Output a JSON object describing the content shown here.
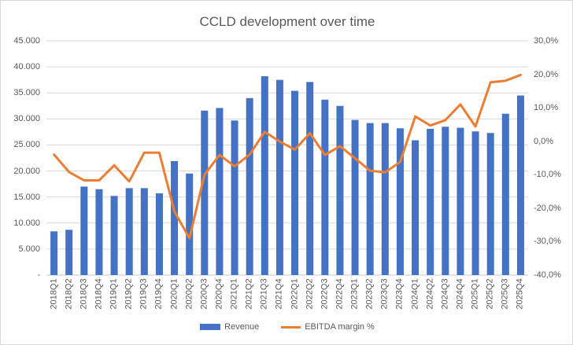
{
  "chart_data": {
    "type": "combo-bar-line",
    "title": "CCLD development over time",
    "categories": [
      "2018Q1",
      "2018Q2",
      "2018Q3",
      "2018Q4",
      "2019Q1",
      "2019Q2",
      "2019Q3",
      "2019Q4",
      "2020Q1",
      "2020Q2",
      "2020Q3",
      "2020Q4",
      "2021Q1",
      "2021Q2",
      "2021Q3",
      "2021Q4",
      "2022Q1",
      "2022Q2",
      "2022Q3",
      "2022Q4",
      "2023Q1",
      "2023Q2",
      "2023Q3",
      "2023Q4",
      "2024Q1",
      "2024Q2",
      "2024Q3",
      "2024Q4",
      "2025Q1",
      "2025Q2",
      "2025Q3",
      "2025Q4"
    ],
    "series": [
      {
        "name": "Revenue",
        "type": "bar",
        "axis": "left",
        "values": [
          8400,
          8700,
          17000,
          16500,
          15200,
          16700,
          16700,
          15700,
          21900,
          19500,
          31600,
          32100,
          29700,
          34000,
          38200,
          37500,
          35400,
          37100,
          33700,
          32500,
          29800,
          29200,
          29200,
          28200,
          25900,
          28100,
          28500,
          28300,
          27600,
          27300,
          31000,
          34500
        ]
      },
      {
        "name": "EBITDA margin %",
        "type": "line",
        "axis": "right",
        "values": [
          -4.0,
          -9.2,
          -11.7,
          -11.7,
          -7.2,
          -12.0,
          -3.4,
          -3.4,
          -21.0,
          -29.0,
          -10.0,
          -4.1,
          -7.5,
          -4.0,
          2.8,
          -0.1,
          -2.5,
          2.4,
          -4.1,
          -1.5,
          -5.1,
          -8.8,
          -9.3,
          -6.2,
          7.4,
          4.7,
          6.3,
          11.0,
          4.4,
          17.6,
          18.1,
          19.8
        ]
      }
    ],
    "left_axis": {
      "min": 0,
      "max": 45000,
      "step": 5000,
      "tick_labels": [
        "45.000",
        "40.000",
        "35.000",
        "30.000",
        "25.000",
        "20.000",
        "15.000",
        "10.000",
        "5.000",
        "-"
      ]
    },
    "right_axis": {
      "min": -40,
      "max": 30,
      "step": 10,
      "tick_labels": [
        "30,0%",
        "20,0%",
        "10,0%",
        "0,0%",
        "-10,0%",
        "-20,0%",
        "-30,0%",
        "-40,0%"
      ]
    },
    "grid": "horizontal",
    "legend_position": "bottom",
    "colors": {
      "bar": "#4472C4",
      "line": "#ED7D31",
      "gridline": "#D9D9D9",
      "baseline": "#C8C8C8",
      "text": "#595959"
    }
  }
}
